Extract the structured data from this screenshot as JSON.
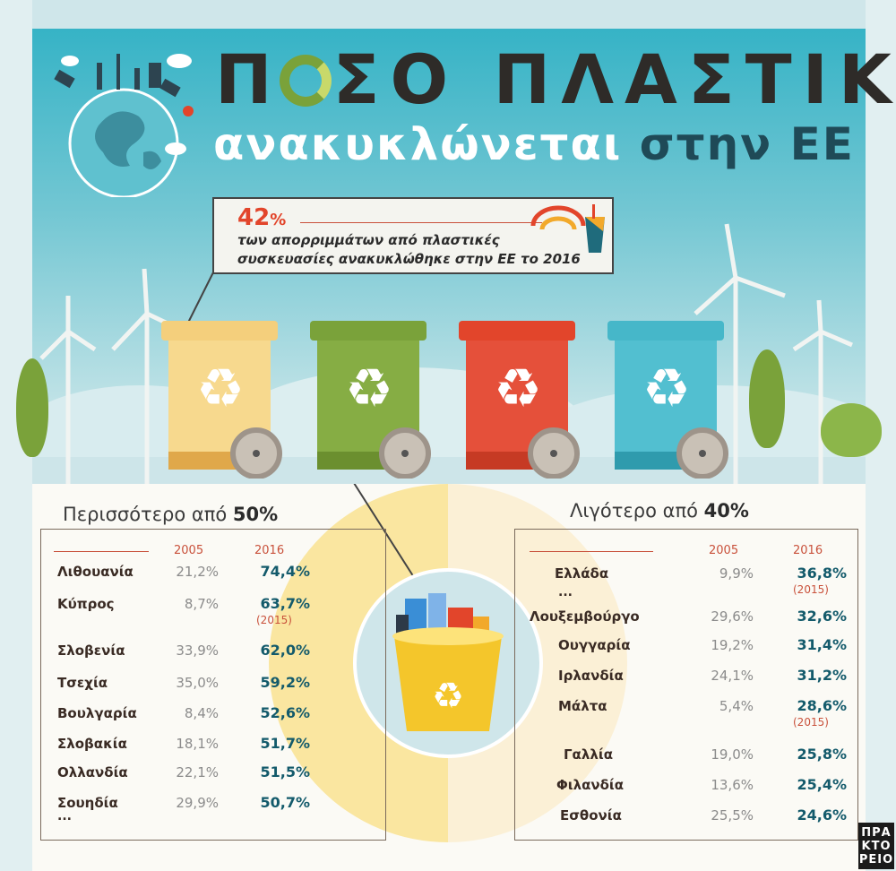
{
  "title": {
    "line1_part1": "Π",
    "line1_part2": "ΣΟ ΠΛΑΣΤΙΚ",
    "line2_part1": "ανακυκλώνεται ",
    "line2_part2": "στην ΕΕ"
  },
  "callout": {
    "percent": "42",
    "percent_sign": "%",
    "text": "των απορριμμάτων από πλαστικές συσκευασίες ανακυκλώθηκε στην ΕΕ το 2016"
  },
  "more_than": {
    "heading_prefix": "Περισσότερο από ",
    "heading_value": "50%",
    "year_a": "2005",
    "year_b": "2016",
    "rows": [
      {
        "country": "Λιθουανία",
        "v2005": "21,2%",
        "v2016": "74,4%",
        "note": ""
      },
      {
        "country": "Κύπρος",
        "v2005": "8,7%",
        "v2016": "63,7%",
        "note": "(2015)"
      },
      {
        "country": "Σλοβενία",
        "v2005": "33,9%",
        "v2016": "62,0%",
        "note": ""
      },
      {
        "country": "Τσεχία",
        "v2005": "35,0%",
        "v2016": "59,2%",
        "note": ""
      },
      {
        "country": "Βουλγαρία",
        "v2005": "8,4%",
        "v2016": "52,6%",
        "note": ""
      },
      {
        "country": "Σλοβακία",
        "v2005": "18,1%",
        "v2016": "51,7%",
        "note": ""
      },
      {
        "country": "Ολλανδία",
        "v2005": "22,1%",
        "v2016": "51,5%",
        "note": ""
      },
      {
        "country": "Σουηδία",
        "v2005": "29,9%",
        "v2016": "50,7%",
        "note": ""
      }
    ],
    "ellipsis": "..."
  },
  "less_than": {
    "heading_prefix": "Λιγότερο από ",
    "heading_value": "40%",
    "year_a": "2005",
    "year_b": "2016",
    "rows": [
      {
        "country": "Ελλάδα",
        "v2005": "9,9%",
        "v2016": "36,8%",
        "note": "(2015)"
      },
      {
        "country": "Λουξεμβούργο",
        "v2005": "29,6%",
        "v2016": "32,6%",
        "note": ""
      },
      {
        "country": "Ουγγαρία",
        "v2005": "19,2%",
        "v2016": "31,4%",
        "note": ""
      },
      {
        "country": "Ιρλανδία",
        "v2005": "24,1%",
        "v2016": "31,2%",
        "note": ""
      },
      {
        "country": "Μάλτα",
        "v2005": "5,4%",
        "v2016": "28,6%",
        "note": "(2015)"
      },
      {
        "country": "Γαλλία",
        "v2005": "19,0%",
        "v2016": "25,8%",
        "note": ""
      },
      {
        "country": "Φιλανδία",
        "v2005": "13,6%",
        "v2016": "25,4%",
        "note": ""
      },
      {
        "country": "Εσθονία",
        "v2005": "25,5%",
        "v2016": "24,6%",
        "note": ""
      }
    ],
    "ellipsis": "..."
  },
  "logo": {
    "l1": "ΠΡΑ",
    "l2": "ΚΤΟ",
    "l3": "ΡΕΙΟ"
  },
  "colors": {
    "bin_yellow": "#f4cf7c",
    "bin_green": "#7aa23a",
    "bin_red": "#e2452b",
    "bin_blue": "#46b7c9",
    "accent": "#c9513b",
    "value_2016": "#135a6b"
  }
}
